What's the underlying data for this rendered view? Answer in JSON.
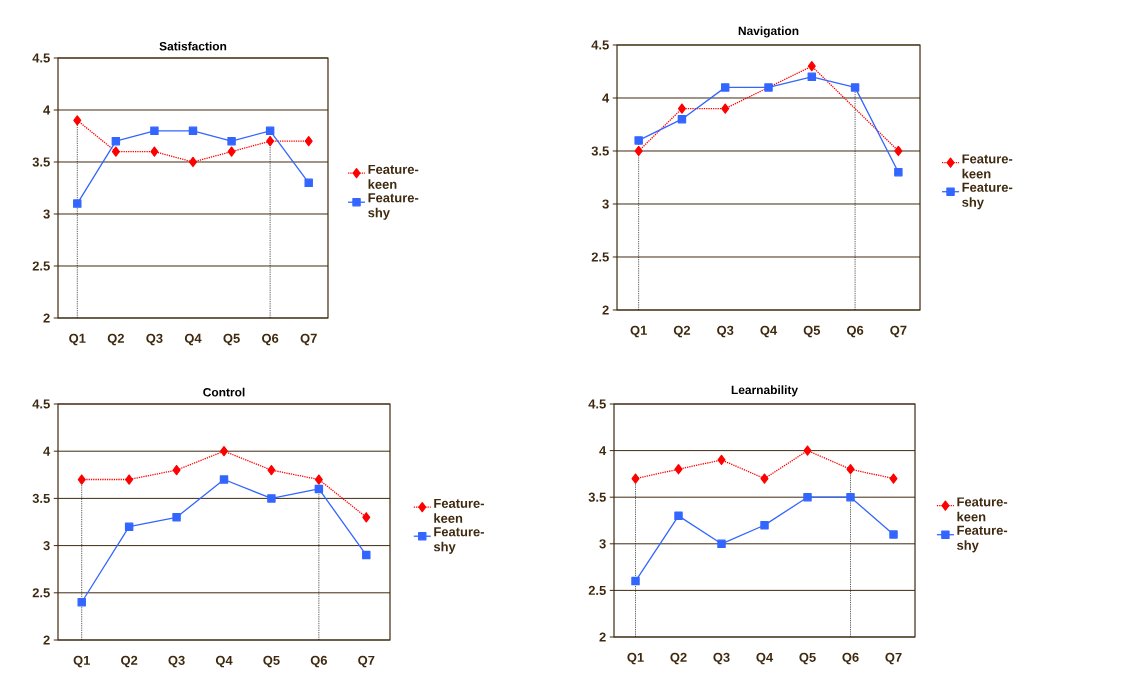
{
  "chart_data": [
    {
      "type": "line",
      "title": "Satisfaction",
      "categories": [
        "Q1",
        "Q2",
        "Q3",
        "Q4",
        "Q5",
        "Q6",
        "Q7"
      ],
      "series": [
        {
          "name": "Feature-keen",
          "color": "#ff0000",
          "marker": "diamond",
          "line_style": "dotted",
          "values": [
            3.9,
            3.6,
            3.6,
            3.5,
            3.6,
            3.7,
            3.7
          ]
        },
        {
          "name": "Feature-shy",
          "color": "#3366ff",
          "marker": "square",
          "line_style": "solid",
          "values": [
            3.1,
            3.7,
            3.8,
            3.8,
            3.7,
            3.8,
            3.3
          ]
        }
      ],
      "ylim": [
        2,
        4.5
      ],
      "yticks": [
        2,
        2.5,
        3,
        3.5,
        4,
        4.5
      ],
      "grid": "y",
      "legend": "right",
      "ref_lines": [
        {
          "axis": "x",
          "value": "Q1",
          "color": "#000000",
          "line_style": "dotted"
        },
        {
          "axis": "x",
          "value": "Q6",
          "color": "#000000",
          "line_style": "dotted"
        }
      ]
    },
    {
      "type": "line",
      "title": "Navigation",
      "categories": [
        "Q1",
        "Q2",
        "Q3",
        "Q4",
        "Q5",
        "Q6",
        "Q7"
      ],
      "series": [
        {
          "name": "Feature-keen",
          "color": "#ff0000",
          "marker": "diamond",
          "line_style": "dotted",
          "values": [
            3.5,
            3.9,
            3.9,
            null,
            4.3,
            null,
            3.5
          ]
        },
        {
          "name": "Feature-shy",
          "color": "#3366ff",
          "marker": "square",
          "line_style": "solid",
          "values": [
            3.6,
            3.8,
            4.1,
            4.1,
            4.2,
            4.1,
            3.3
          ]
        }
      ],
      "ylim": [
        2,
        4.5
      ],
      "yticks": [
        2,
        2.5,
        3,
        3.5,
        4,
        4.5
      ],
      "grid": "y",
      "legend": "right",
      "ref_lines": [
        {
          "axis": "x",
          "value": "Q1",
          "color": "#000000",
          "line_style": "dotted"
        },
        {
          "axis": "x",
          "value": "Q6",
          "color": "#000000",
          "line_style": "dotted"
        }
      ]
    },
    {
      "type": "line",
      "title": "Control",
      "categories": [
        "Q1",
        "Q2",
        "Q3",
        "Q4",
        "Q5",
        "Q6",
        "Q7"
      ],
      "series": [
        {
          "name": "Feature-keen",
          "color": "#ff0000",
          "marker": "diamond",
          "line_style": "dotted",
          "values": [
            3.7,
            3.7,
            3.8,
            4.0,
            3.8,
            3.7,
            3.3
          ]
        },
        {
          "name": "Feature-shy",
          "color": "#3366ff",
          "marker": "square",
          "line_style": "solid",
          "values": [
            2.4,
            3.2,
            3.3,
            3.7,
            3.5,
            3.6,
            2.9
          ]
        }
      ],
      "ylim": [
        2,
        4.5
      ],
      "yticks": [
        2,
        2.5,
        3,
        3.5,
        4,
        4.5
      ],
      "grid": "y",
      "legend": "right",
      "ref_lines": [
        {
          "axis": "x",
          "value": "Q1",
          "color": "#000000",
          "line_style": "dotted"
        },
        {
          "axis": "x",
          "value": "Q6",
          "color": "#000000",
          "line_style": "dotted"
        }
      ]
    },
    {
      "type": "line",
      "title": "Learnability",
      "categories": [
        "Q1",
        "Q2",
        "Q3",
        "Q4",
        "Q5",
        "Q6",
        "Q7"
      ],
      "series": [
        {
          "name": "Feature-keen",
          "color": "#ff0000",
          "marker": "diamond",
          "line_style": "dotted",
          "values": [
            3.7,
            3.8,
            3.9,
            3.7,
            4.0,
            3.8,
            3.7
          ]
        },
        {
          "name": "Feature-shy",
          "color": "#3366ff",
          "marker": "square",
          "line_style": "solid",
          "values": [
            2.6,
            3.3,
            3.0,
            3.2,
            3.5,
            3.5,
            3.1
          ]
        }
      ],
      "ylim": [
        2,
        4.5
      ],
      "yticks": [
        2,
        2.5,
        3,
        3.5,
        4,
        4.5
      ],
      "grid": "y",
      "legend": "right",
      "ref_lines": [
        {
          "axis": "x",
          "value": "Q1",
          "color": "#000000",
          "line_style": "dotted"
        },
        {
          "axis": "x",
          "value": "Q6",
          "color": "#000000",
          "line_style": "dotted"
        }
      ]
    }
  ]
}
